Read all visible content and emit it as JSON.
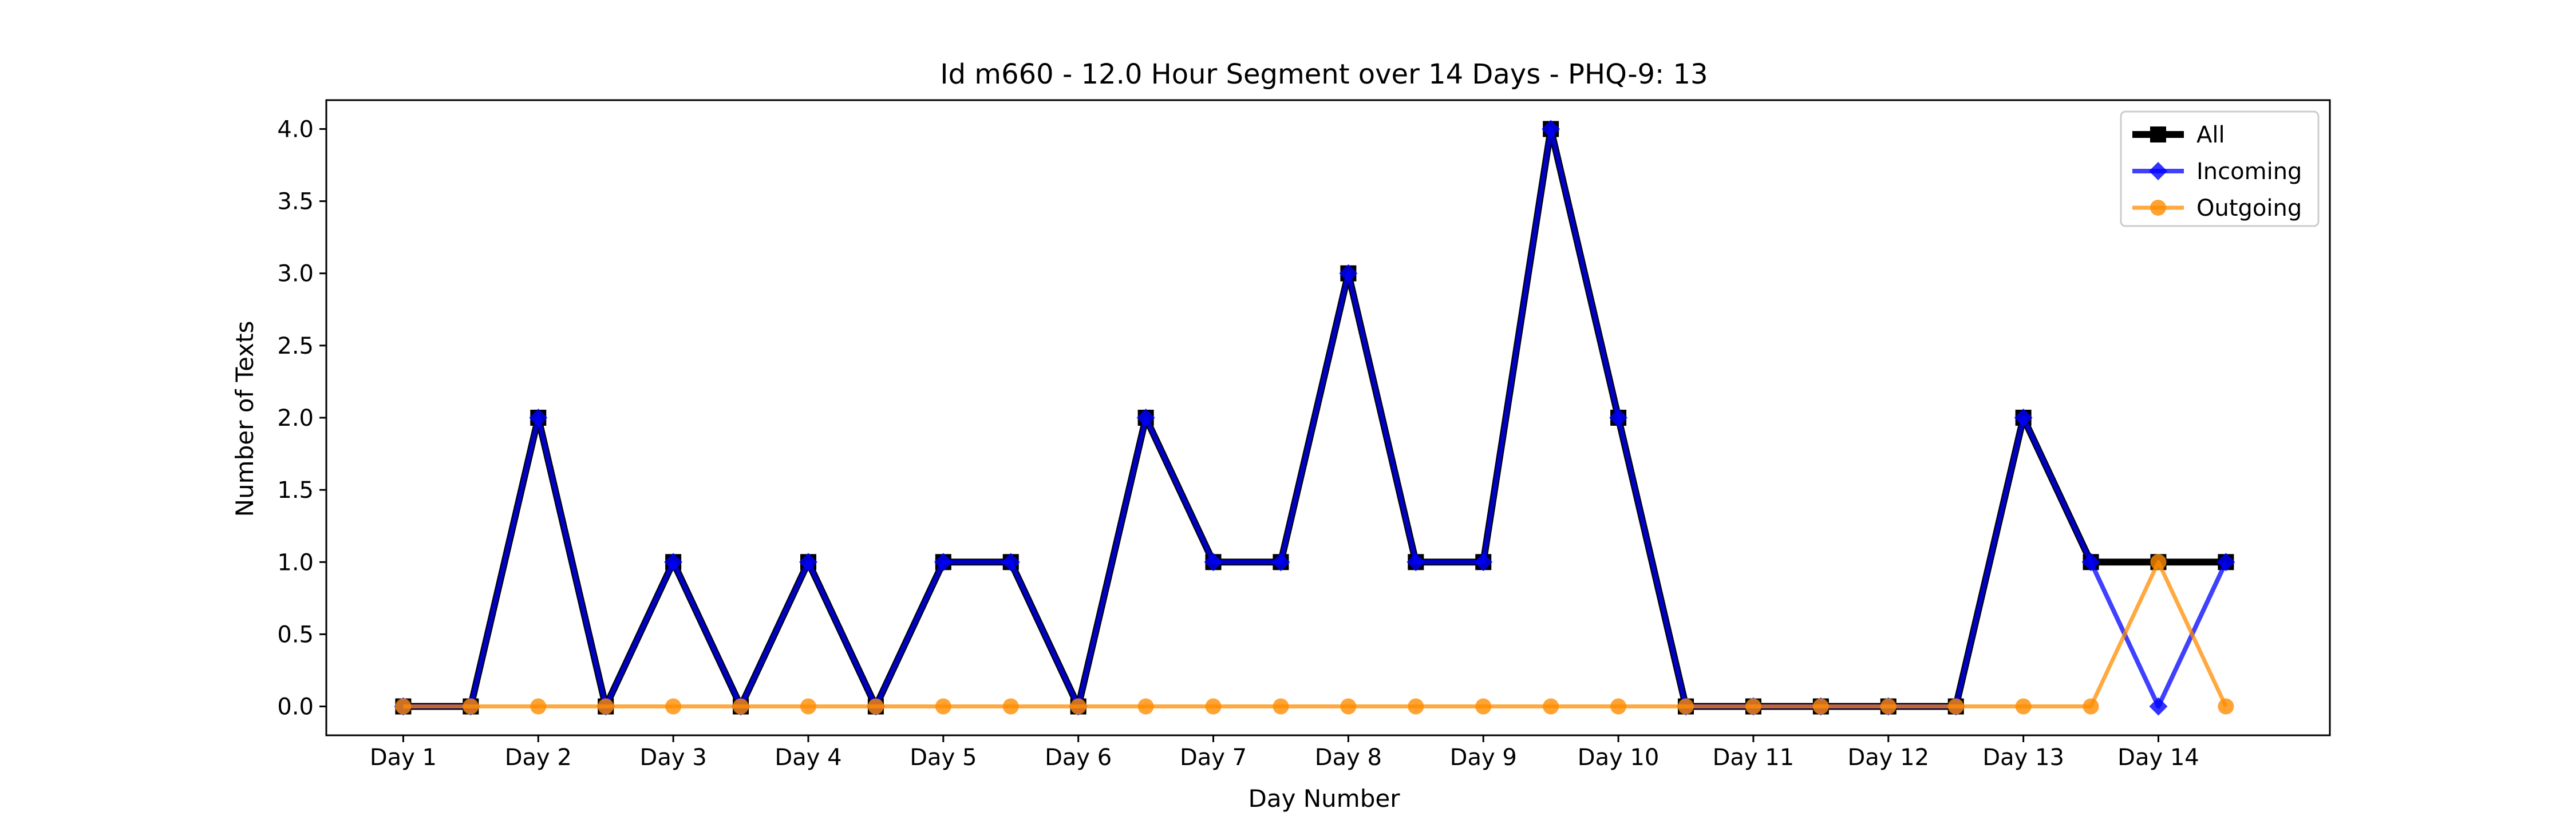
{
  "chart_data": {
    "type": "line",
    "title": "Id m660 - 12.0 Hour Segment over 14 Days - PHQ-9: 13",
    "xlabel": "Day Number",
    "ylabel": "Number of Texts",
    "x": [
      1,
      1.5,
      2,
      2.5,
      3,
      3.5,
      4,
      4.5,
      5,
      5.5,
      6,
      6.5,
      7,
      7.5,
      8,
      8.5,
      9,
      9.5,
      10,
      10.5,
      11,
      11.5,
      12,
      12.5,
      13,
      13.5,
      14,
      14.5
    ],
    "xticks": [
      1,
      2,
      3,
      4,
      5,
      6,
      7,
      8,
      9,
      10,
      11,
      12,
      13,
      14
    ],
    "xtick_labels": [
      "Day 1",
      "Day 2",
      "Day 3",
      "Day 4",
      "Day 5",
      "Day 6",
      "Day 7",
      "Day 8",
      "Day 9",
      "Day 10",
      "Day 11",
      "Day 12",
      "Day 13",
      "Day 14"
    ],
    "xlim": [
      0.43,
      15.27
    ],
    "ylim": [
      -0.2,
      4.2
    ],
    "yticks": [
      0.0,
      0.5,
      1.0,
      1.5,
      2.0,
      2.5,
      3.0,
      3.5,
      4.0
    ],
    "ytick_labels": [
      "0.0",
      "0.5",
      "1.0",
      "1.5",
      "2.0",
      "2.5",
      "3.0",
      "3.5",
      "4.0"
    ],
    "grid": false,
    "legend_position": "top-right",
    "series": [
      {
        "name": "All",
        "color": "#000000",
        "marker": "square",
        "values": [
          0,
          0,
          2,
          0,
          1,
          0,
          1,
          0,
          1,
          1,
          0,
          2,
          1,
          1,
          3,
          1,
          1,
          4,
          2,
          0,
          0,
          0,
          0,
          0,
          2,
          1,
          1,
          1
        ]
      },
      {
        "name": "Incoming",
        "color": "#0000ff",
        "marker": "diamond",
        "values": [
          0,
          0,
          2,
          0,
          1,
          0,
          1,
          0,
          1,
          1,
          0,
          2,
          1,
          1,
          3,
          1,
          1,
          4,
          2,
          0,
          0,
          0,
          0,
          0,
          2,
          1,
          0,
          1
        ]
      },
      {
        "name": "Outgoing",
        "color": "#ff8c00",
        "marker": "circle",
        "values": [
          0,
          0,
          0,
          0,
          0,
          0,
          0,
          0,
          0,
          0,
          0,
          0,
          0,
          0,
          0,
          0,
          0,
          0,
          0,
          0,
          0,
          0,
          0,
          0,
          0,
          0,
          1,
          0
        ]
      }
    ]
  }
}
